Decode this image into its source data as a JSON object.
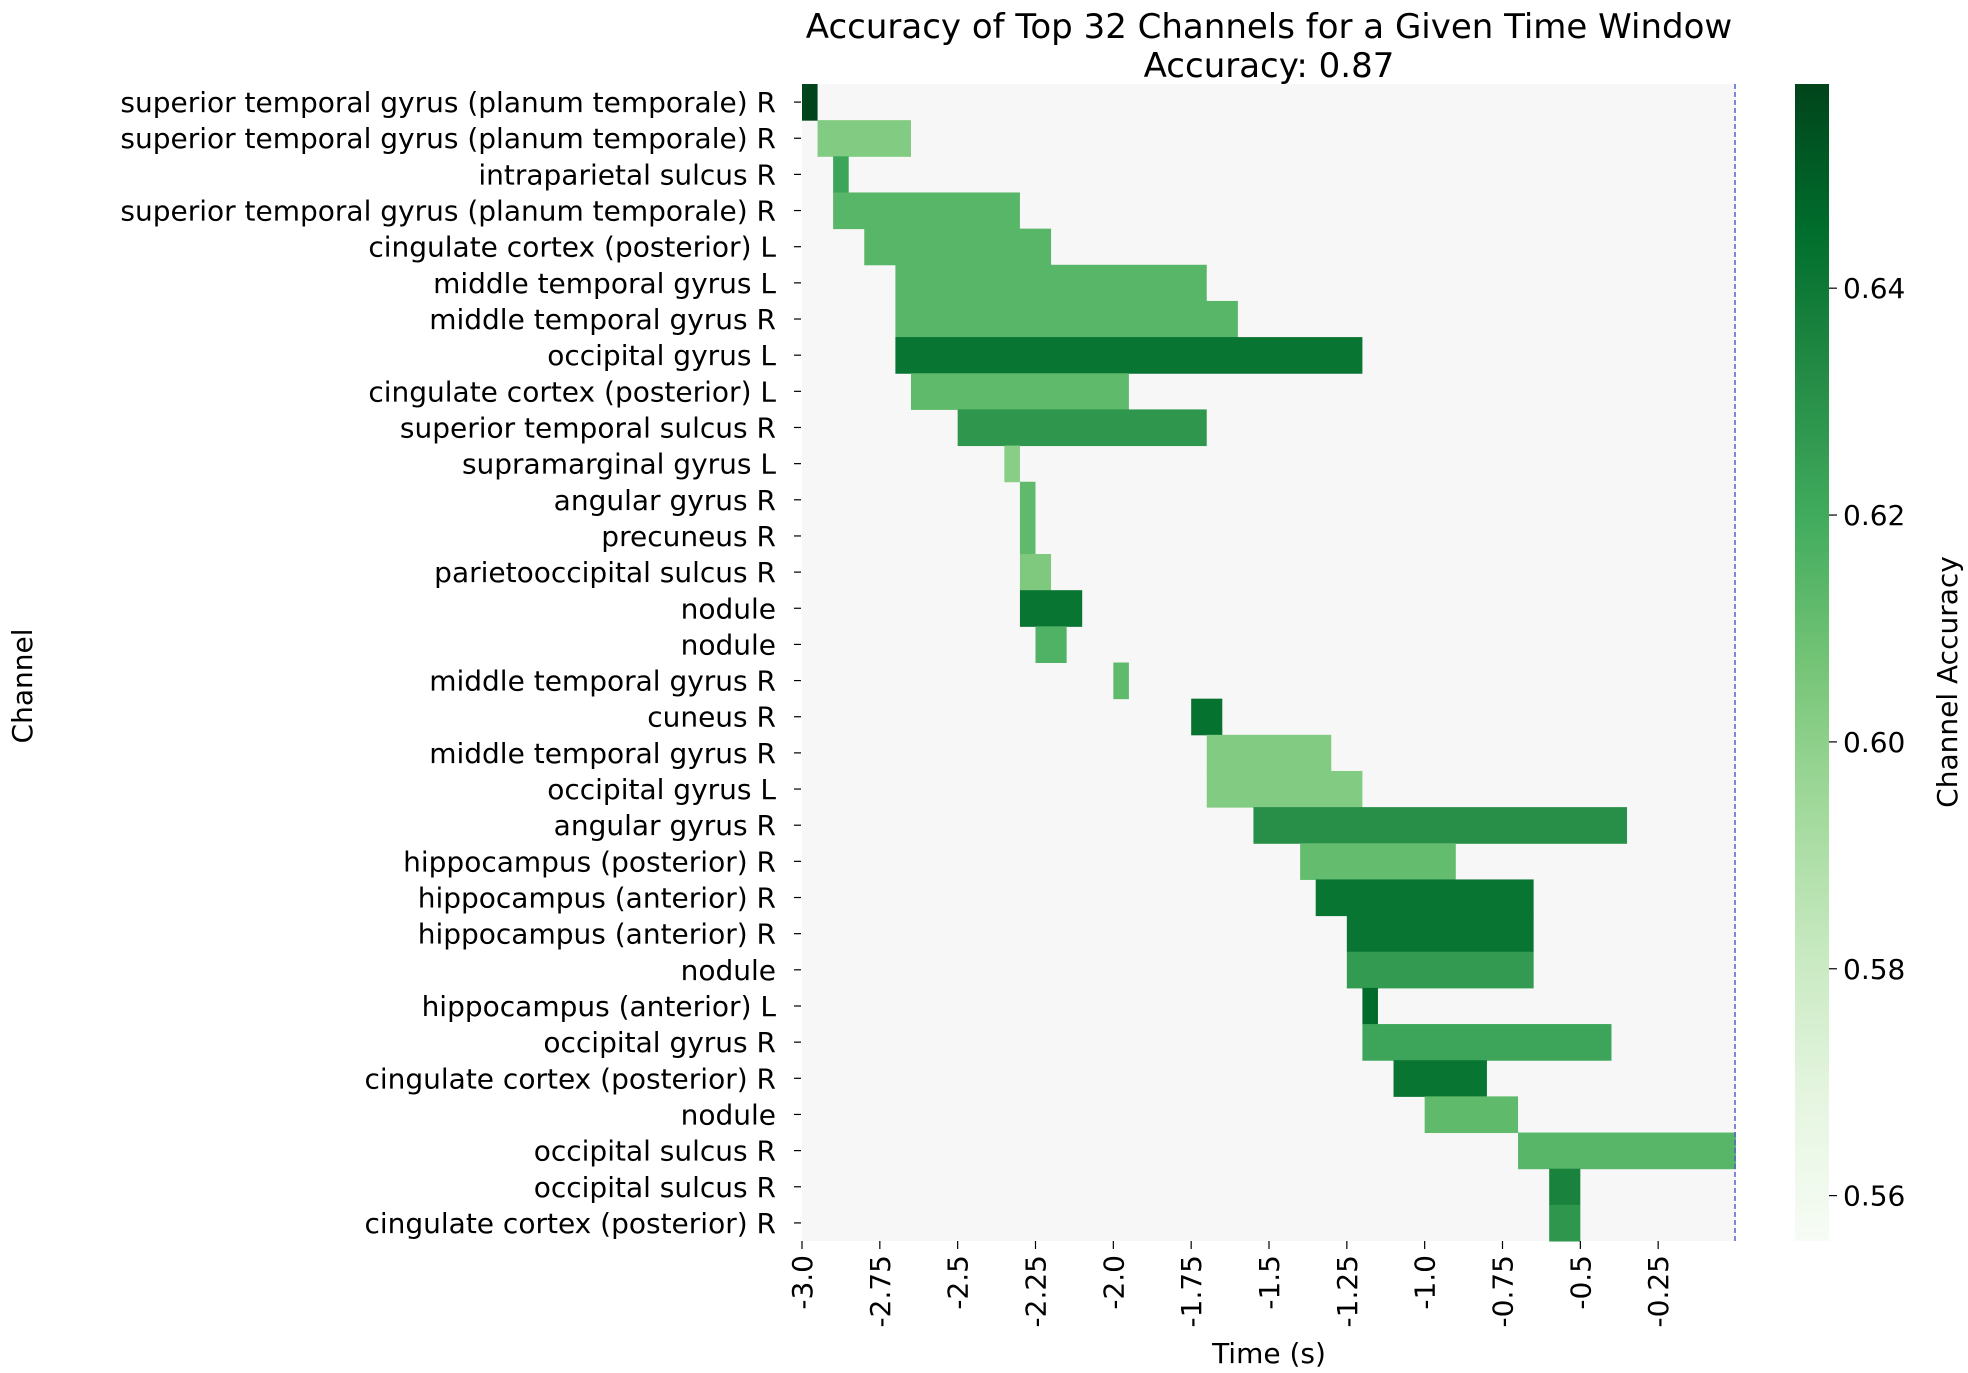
{
  "chart_data": {
    "type": "heatmap",
    "title": "Accuracy of Top 32 Channels for a Given Time Window",
    "subtitle": "Accuracy: 0.87",
    "xlabel": "Time (s)",
    "ylabel": "Channel",
    "colorbar_label": "Channel Accuracy",
    "x_range": [
      -3.0,
      0.0
    ],
    "x_ticks": [
      -3.0,
      -2.75,
      -2.5,
      -2.25,
      -2.0,
      -1.75,
      -1.5,
      -1.25,
      -1.0,
      -0.75,
      -0.5,
      -0.25
    ],
    "x_tick_labels": [
      "-3.0",
      "-2.75",
      "-2.5",
      "-2.25",
      "-2.0",
      "-1.75",
      "-1.5",
      "-1.25",
      "-1.0",
      "-0.75",
      "-0.5",
      "-0.25"
    ],
    "color_range": [
      0.556,
      0.658
    ],
    "colorbar_ticks": [
      0.56,
      0.58,
      0.6,
      0.62,
      0.64
    ],
    "colorbar_tick_labels": [
      "0.56",
      "0.58",
      "0.60",
      "0.62",
      "0.64"
    ],
    "colormap": "Greens",
    "background_color": "#f7f7f7",
    "marker_line": {
      "x": 0.0,
      "color": "#5563c8",
      "style": "dashed"
    },
    "rows": [
      {
        "channel": "superior temporal gyrus (planum temporale) R",
        "start": -3.0,
        "end": -2.95,
        "accuracy": 0.658
      },
      {
        "channel": "superior temporal gyrus (planum temporale) R",
        "start": -2.95,
        "end": -2.65,
        "accuracy": 0.603
      },
      {
        "channel": "intraparietal sulcus R",
        "start": -2.9,
        "end": -2.85,
        "accuracy": 0.622
      },
      {
        "channel": "superior temporal gyrus (planum temporale) R",
        "start": -2.9,
        "end": -2.3,
        "accuracy": 0.614
      },
      {
        "channel": "cingulate cortex (posterior) L",
        "start": -2.8,
        "end": -2.2,
        "accuracy": 0.614
      },
      {
        "channel": "middle temporal gyrus L",
        "start": -2.7,
        "end": -1.7,
        "accuracy": 0.614
      },
      {
        "channel": "middle temporal gyrus R",
        "start": -2.7,
        "end": -1.6,
        "accuracy": 0.614
      },
      {
        "channel": "occipital gyrus L",
        "start": -2.7,
        "end": -1.2,
        "accuracy": 0.642
      },
      {
        "channel": "cingulate cortex (posterior) L",
        "start": -2.65,
        "end": -1.95,
        "accuracy": 0.612
      },
      {
        "channel": "superior temporal sulcus R",
        "start": -2.5,
        "end": -1.7,
        "accuracy": 0.628
      },
      {
        "channel": "supramarginal gyrus L",
        "start": -2.35,
        "end": -2.3,
        "accuracy": 0.601
      },
      {
        "channel": "angular gyrus R",
        "start": -2.3,
        "end": -2.25,
        "accuracy": 0.612
      },
      {
        "channel": "precuneus R",
        "start": -2.3,
        "end": -2.25,
        "accuracy": 0.612
      },
      {
        "channel": "parietooccipital sulcus R",
        "start": -2.3,
        "end": -2.2,
        "accuracy": 0.604
      },
      {
        "channel": "nodule",
        "start": -2.3,
        "end": -2.1,
        "accuracy": 0.642
      },
      {
        "channel": "nodule",
        "start": -2.25,
        "end": -2.15,
        "accuracy": 0.616
      },
      {
        "channel": "middle temporal gyrus R",
        "start": -2.0,
        "end": -1.95,
        "accuracy": 0.612
      },
      {
        "channel": "cuneus R",
        "start": -1.75,
        "end": -1.65,
        "accuracy": 0.643
      },
      {
        "channel": "middle temporal gyrus R",
        "start": -1.7,
        "end": -1.3,
        "accuracy": 0.603
      },
      {
        "channel": "occipital gyrus L",
        "start": -1.7,
        "end": -1.2,
        "accuracy": 0.603
      },
      {
        "channel": "angular gyrus R",
        "start": -1.55,
        "end": -0.35,
        "accuracy": 0.631
      },
      {
        "channel": "hippocampus (posterior) R",
        "start": -1.4,
        "end": -0.9,
        "accuracy": 0.611
      },
      {
        "channel": "hippocampus (anterior) R",
        "start": -1.35,
        "end": -0.65,
        "accuracy": 0.642
      },
      {
        "channel": "hippocampus (anterior) R",
        "start": -1.25,
        "end": -0.65,
        "accuracy": 0.642
      },
      {
        "channel": "nodule",
        "start": -1.25,
        "end": -0.65,
        "accuracy": 0.626
      },
      {
        "channel": "hippocampus (anterior) L",
        "start": -1.2,
        "end": -1.15,
        "accuracy": 0.646
      },
      {
        "channel": "occipital gyrus R",
        "start": -1.2,
        "end": -0.4,
        "accuracy": 0.622
      },
      {
        "channel": "cingulate cortex (posterior) R",
        "start": -1.1,
        "end": -0.8,
        "accuracy": 0.642
      },
      {
        "channel": "nodule",
        "start": -1.0,
        "end": -0.7,
        "accuracy": 0.612
      },
      {
        "channel": "occipital sulcus R",
        "start": -0.7,
        "end": 0.0,
        "accuracy": 0.614
      },
      {
        "channel": "occipital sulcus R",
        "start": -0.6,
        "end": -0.5,
        "accuracy": 0.636
      },
      {
        "channel": "cingulate cortex (posterior) R",
        "start": -0.6,
        "end": -0.5,
        "accuracy": 0.628
      }
    ]
  }
}
